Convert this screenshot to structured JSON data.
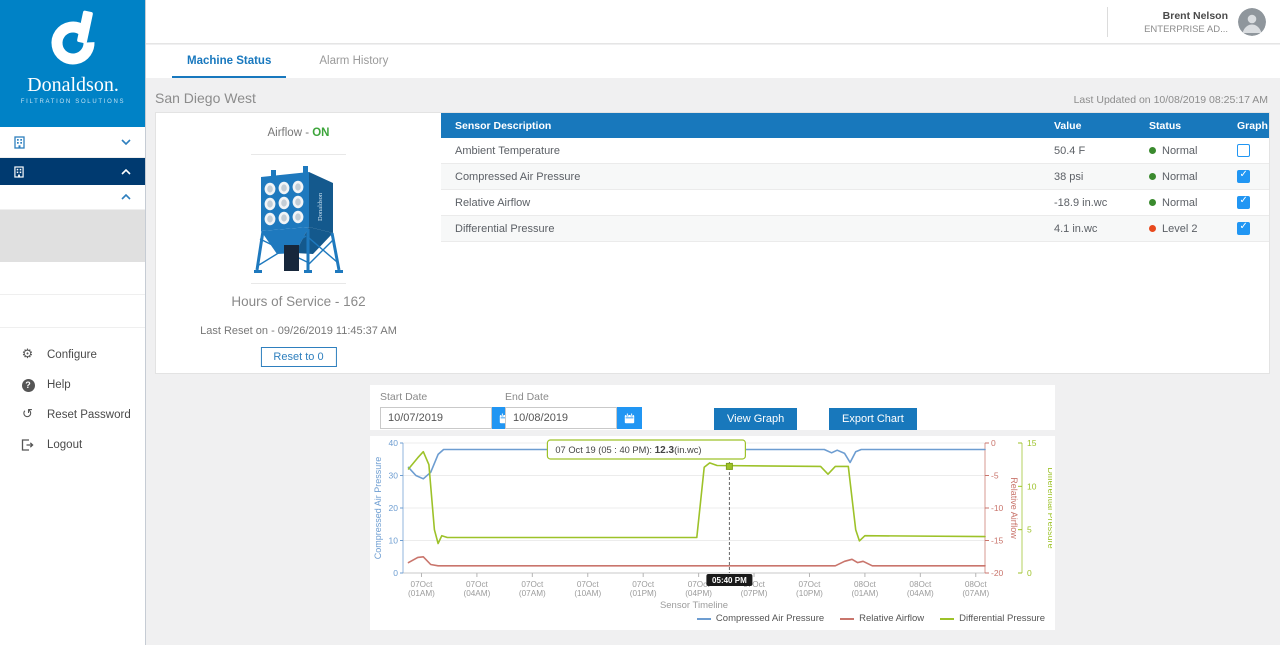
{
  "brand": {
    "wordmark": "Donaldson.",
    "tagline": "FILTRATION SOLUTIONS",
    "color": "#0082C6"
  },
  "header": {
    "user_name": "Brent Nelson",
    "user_role": "ENTERPRISE AD..."
  },
  "tabs": {
    "machine_status": "Machine Status",
    "alarm_history": "Alarm History"
  },
  "page": {
    "title": "San Diego West",
    "last_updated": "Last Updated on 10/08/2019 08:25:17 AM"
  },
  "machine_panel": {
    "airflow_label": "Airflow -",
    "airflow_state": "ON",
    "hours_of_service": "Hours of Service - 162",
    "last_reset": "Last Reset on - 09/26/2019 11:45:37 AM",
    "reset_button": "Reset to 0"
  },
  "sensor_table": {
    "columns": [
      "Sensor Description",
      "Value",
      "Status",
      "Graph"
    ],
    "rows": [
      {
        "description": "Ambient Temperature",
        "value": "50.4 F",
        "status": "Normal",
        "status_color": "#3A8A2E",
        "graph_checked": false
      },
      {
        "description": "Compressed Air Pressure",
        "value": "38 psi",
        "status": "Normal",
        "status_color": "#3A8A2E",
        "graph_checked": true
      },
      {
        "description": "Relative Airflow",
        "value": "-18.9 in.wc",
        "status": "Normal",
        "status_color": "#3A8A2E",
        "graph_checked": true
      },
      {
        "description": "Differential Pressure",
        "value": "4.1 in.wc",
        "status": "Level 2",
        "status_color": "#E8491D",
        "graph_checked": true
      }
    ]
  },
  "filters": {
    "start_label": "Start Date",
    "start_value": "10/07/2019",
    "end_label": "End Date",
    "end_value": "10/08/2019",
    "view_graph": "View Graph",
    "export_chart": "Export Chart"
  },
  "sidebar": {
    "menu": [
      {
        "icon": "gear-icon",
        "label": "Configure"
      },
      {
        "icon": "help-icon",
        "label": "Help"
      },
      {
        "icon": "reset-icon",
        "label": "Reset Password"
      },
      {
        "icon": "logout-icon",
        "label": "Logout"
      }
    ]
  },
  "chart_data": {
    "type": "line",
    "xlabel": "Sensor Timeline",
    "x_range": [
      0,
      31.5
    ],
    "x_ticks": [
      {
        "t": 1,
        "date": "07Oct",
        "time": "(01AM)"
      },
      {
        "t": 4,
        "date": "07Oct",
        "time": "(04AM)"
      },
      {
        "t": 7,
        "date": "07Oct",
        "time": "(07AM)"
      },
      {
        "t": 10,
        "date": "07Oct",
        "time": "(10AM)"
      },
      {
        "t": 13,
        "date": "07Oct",
        "time": "(01PM)"
      },
      {
        "t": 16,
        "date": "07Oct",
        "time": "(04PM)"
      },
      {
        "t": 19,
        "date": "07Oct",
        "time": "(07PM)"
      },
      {
        "t": 22,
        "date": "07Oct",
        "time": "(10PM)"
      },
      {
        "t": 25,
        "date": "08Oct",
        "time": "(01AM)"
      },
      {
        "t": 28,
        "date": "08Oct",
        "time": "(04AM)"
      },
      {
        "t": 31,
        "date": "08Oct",
        "time": "(07AM)"
      }
    ],
    "axes": [
      {
        "id": "cap",
        "label": "Compressed Air Pressure",
        "side": "left",
        "range": [
          0,
          40
        ],
        "ticks": [
          0,
          10,
          20,
          30,
          40
        ],
        "color": "#6D9DD1"
      },
      {
        "id": "ra",
        "label": "Relative Airflow",
        "side": "right",
        "range": [
          -20,
          0
        ],
        "ticks": [
          0,
          -5,
          -10,
          -15,
          -20
        ],
        "color": "#C9756C"
      },
      {
        "id": "dp",
        "label": "Differential Pressure",
        "side": "right2",
        "range": [
          0,
          15
        ],
        "ticks": [
          0,
          5,
          10,
          15
        ],
        "color": "#9DC229"
      }
    ],
    "series": [
      {
        "name": "Compressed Air Pressure",
        "axis": "cap",
        "color": "#6D9DD1",
        "points": [
          [
            0.3,
            32.5
          ],
          [
            0.7,
            30
          ],
          [
            1.1,
            29
          ],
          [
            1.5,
            31
          ],
          [
            1.9,
            36.5
          ],
          [
            2.2,
            38
          ],
          [
            22.8,
            38
          ],
          [
            23.2,
            37
          ],
          [
            23.5,
            37.8
          ],
          [
            23.9,
            36.8
          ],
          [
            24.2,
            34
          ],
          [
            24.5,
            37.3
          ],
          [
            24.8,
            38
          ],
          [
            31.5,
            38
          ]
        ]
      },
      {
        "name": "Relative Airflow",
        "axis": "ra",
        "color": "#C9756C",
        "points": [
          [
            0.3,
            -18.4
          ],
          [
            0.8,
            -17.6
          ],
          [
            1.1,
            -17.5
          ],
          [
            1.5,
            -18.7
          ],
          [
            1.9,
            -18.9
          ],
          [
            23.4,
            -18.9
          ],
          [
            23.9,
            -18.2
          ],
          [
            24.3,
            -17.9
          ],
          [
            24.6,
            -18.4
          ],
          [
            24.9,
            -18.2
          ],
          [
            25.4,
            -18.9
          ],
          [
            31.5,
            -18.9
          ]
        ]
      },
      {
        "name": "Differential Pressure",
        "axis": "dp",
        "color": "#9DC229",
        "points": [
          [
            0.3,
            12.0
          ],
          [
            0.8,
            13.3
          ],
          [
            1.1,
            14.0
          ],
          [
            1.4,
            12.5
          ],
          [
            1.7,
            5.0
          ],
          [
            1.9,
            3.4
          ],
          [
            2.1,
            4.3
          ],
          [
            2.4,
            4.1
          ],
          [
            15.9,
            4.1
          ],
          [
            16.3,
            12.2
          ],
          [
            16.6,
            12.7
          ],
          [
            17.0,
            12.4
          ],
          [
            22.6,
            12.3
          ],
          [
            23.0,
            11.4
          ],
          [
            23.4,
            12.3
          ],
          [
            24.1,
            12.3
          ],
          [
            24.5,
            5.0
          ],
          [
            24.7,
            3.7
          ],
          [
            25.0,
            4.3
          ],
          [
            31.5,
            4.2
          ]
        ]
      }
    ],
    "cursor": {
      "t": 17.666,
      "series": "Differential Pressure",
      "value": 12.3,
      "time_badge": "05:40 PM",
      "tooltip_prefix": "07 Oct 19 (05 : 40 PM): ",
      "tooltip_value": "12.3",
      "tooltip_suffix": "(in.wc)"
    },
    "grid": true,
    "legend_position": "bottom-right"
  }
}
